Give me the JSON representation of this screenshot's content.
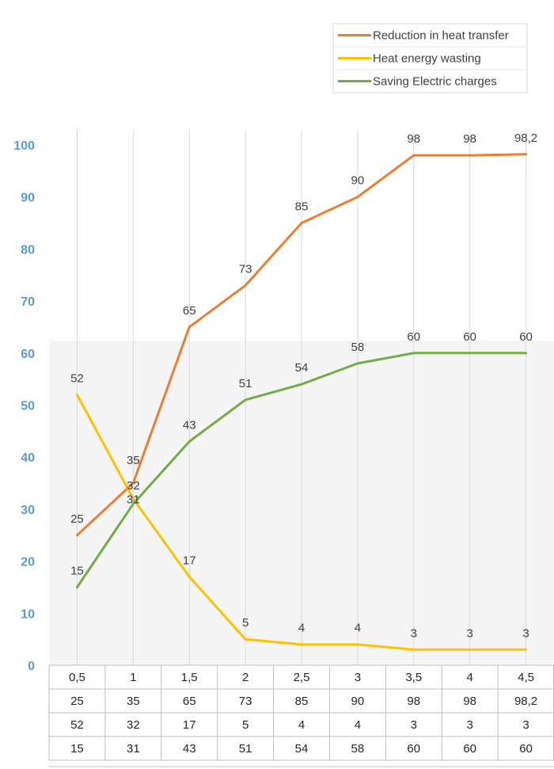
{
  "chart_data": {
    "type": "line",
    "title": "",
    "xlabel": "",
    "ylabel": "",
    "ylim": [
      0,
      100
    ],
    "yticks": [
      0,
      10,
      20,
      30,
      40,
      50,
      60,
      70,
      80,
      90,
      100
    ],
    "categories": [
      "0,5",
      "1",
      "1,5",
      "2",
      "2,5",
      "3",
      "3,5",
      "4",
      "4,5"
    ],
    "grid": "vertical",
    "legend_position": "top-right",
    "series": [
      {
        "name": "Reduction in heat transfer",
        "color": "#ed7d31",
        "values": [
          25,
          35,
          65,
          73,
          85,
          90,
          98,
          98,
          98.2
        ],
        "labels": [
          "25",
          "35",
          "65",
          "73",
          "85",
          "90",
          "98",
          "98",
          "98,2"
        ]
      },
      {
        "name": "Heat energy wasting",
        "color": "#ffc000",
        "values": [
          52,
          32,
          17,
          5,
          4,
          4,
          3,
          3,
          3
        ],
        "labels": [
          "52",
          "32",
          "17",
          "5",
          "4",
          "4",
          "3",
          "3",
          "3"
        ]
      },
      {
        "name": "Saving Electric charges",
        "color": "#70ad47",
        "values": [
          15,
          31,
          43,
          51,
          54,
          58,
          60,
          60,
          60
        ],
        "labels": [
          "15",
          "31",
          "43",
          "51",
          "54",
          "58",
          "60",
          "60",
          "60"
        ]
      }
    ]
  }
}
